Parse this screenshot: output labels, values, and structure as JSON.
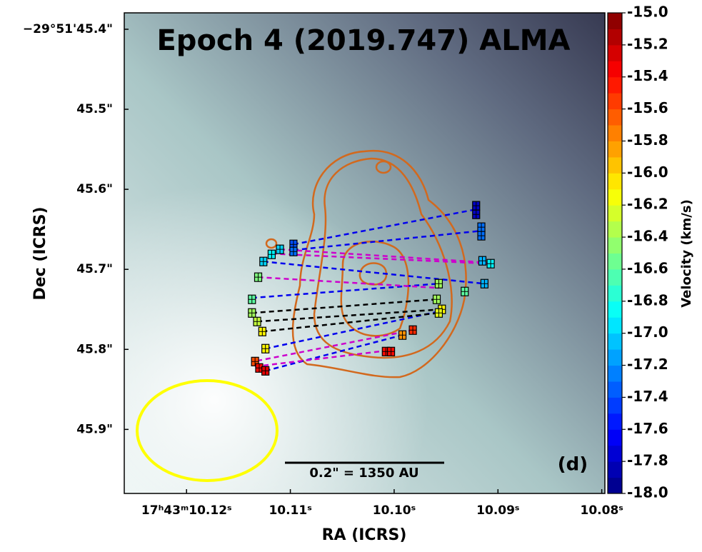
{
  "chart_data": {
    "type": "scatter",
    "title": "Epoch 4 (2019.747) ALMA",
    "x_label": "RA (ICRS)",
    "y_label": "Dec (ICRS)",
    "colorbar_label": "Velocity (km/s)",
    "colormap": "jet",
    "scale_bar_label": "0.2\" = 1350 AU",
    "panel_label": "(d)",
    "xlim": [
      10.126,
      10.0797
    ],
    "ylim": [
      45.98,
      45.3795
    ],
    "xticks": [
      {
        "value": 10.12,
        "label": "17ʰ43ᵐ10.12ˢ"
      },
      {
        "value": 10.11,
        "label": "10.11ˢ"
      },
      {
        "value": 10.1,
        "label": "10.10ˢ"
      },
      {
        "value": 10.09,
        "label": "10.09ˢ"
      },
      {
        "value": 10.08,
        "label": "10.08ˢ"
      }
    ],
    "yticks": [
      {
        "value": 45.4,
        "label": "−29°51'45.4\""
      },
      {
        "value": 45.5,
        "label": "45.5\""
      },
      {
        "value": 45.6,
        "label": "45.6\""
      },
      {
        "value": 45.7,
        "label": "45.7\""
      },
      {
        "value": 45.8,
        "label": "45.8\""
      },
      {
        "value": 45.9,
        "label": "45.9\""
      }
    ],
    "clim": [
      -18,
      -15
    ],
    "cticks": [
      {
        "value": -15,
        "label": "-15.0"
      },
      -15.2,
      -15.4,
      -15.6,
      -15.8,
      {
        "value": -16,
        "label": "-16.0"
      },
      -16.2,
      -16.4,
      -16.6,
      -16.8,
      {
        "value": -17,
        "label": "-17.0"
      },
      -17.2,
      -17.4,
      -17.6,
      -17.8,
      {
        "value": -18,
        "label": "-18.0"
      }
    ],
    "x": [
      10.0921,
      10.0921,
      10.0916,
      10.0916,
      10.1097,
      10.1097,
      10.111,
      10.1118,
      10.1126,
      10.0915,
      10.0907,
      10.1131,
      10.0913,
      10.0957,
      10.0932,
      10.1137,
      10.0959,
      10.1137,
      10.0954,
      10.1132,
      10.0957,
      10.1127,
      10.0982,
      10.0992,
      10.1124,
      10.1008,
      10.1003,
      10.1134,
      10.113,
      10.1124
    ],
    "y": [
      45.6205,
      45.6313,
      45.6473,
      45.658,
      45.6688,
      45.6777,
      45.675,
      45.6813,
      45.6902,
      45.6893,
      45.6929,
      45.7098,
      45.7179,
      45.7179,
      45.7277,
      45.7375,
      45.7375,
      45.7545,
      45.75,
      45.7652,
      45.7545,
      45.7777,
      45.7759,
      45.7821,
      45.7991,
      45.8027,
      45.8027,
      45.8152,
      45.8232,
      45.8268
    ],
    "values": [
      -17.8,
      -17.8,
      -17.3,
      -17.3,
      -17.4,
      -17.3,
      -17.0,
      -16.9,
      -17.0,
      -17.1,
      -16.9,
      -16.5,
      -17.1,
      -16.4,
      -16.6,
      -16.6,
      -16.4,
      -16.4,
      -16.1,
      -16.3,
      -16.2,
      -16.1,
      -15.5,
      -15.8,
      -16.1,
      -15.4,
      -15.4,
      -15.6,
      -15.4,
      -15.3
    ],
    "segments": [
      {
        "color": "#0000ee",
        "x": [
          10.1097,
          10.0921
        ],
        "y": [
          45.6688,
          45.625
        ]
      },
      {
        "color": "#0000ee",
        "x": [
          10.1097,
          10.0916
        ],
        "y": [
          45.6759,
          45.6518
        ]
      },
      {
        "color": "#0000ee",
        "x": [
          10.1126,
          10.0913
        ],
        "y": [
          45.6902,
          45.7179
        ]
      },
      {
        "color": "#0000ee",
        "x": [
          10.1137,
          10.0957
        ],
        "y": [
          45.7357,
          45.7179
        ]
      },
      {
        "color": "#0000ee",
        "x": [
          10.1124,
          10.0957
        ],
        "y": [
          45.7991,
          45.7527
        ]
      },
      {
        "color": "#0000ee",
        "x": [
          10.1124,
          10.0992
        ],
        "y": [
          45.8268,
          45.7821
        ]
      },
      {
        "color": "#cc00cc",
        "x": [
          10.111,
          10.0915
        ],
        "y": [
          45.675,
          45.6911
        ]
      },
      {
        "color": "#cc00cc",
        "x": [
          10.1118,
          10.0907
        ],
        "y": [
          45.6804,
          45.6929
        ]
      },
      {
        "color": "#cc00cc",
        "x": [
          10.1131,
          10.0957
        ],
        "y": [
          45.7098,
          45.7232
        ]
      },
      {
        "color": "#cc00cc",
        "x": [
          10.1132,
          10.0982
        ],
        "y": [
          45.8143,
          45.7759
        ]
      },
      {
        "color": "#cc00cc",
        "x": [
          10.1134,
          10.1003
        ],
        "y": [
          45.8214,
          45.8009
        ]
      },
      {
        "color": "#000000",
        "x": [
          10.1137,
          10.0959
        ],
        "y": [
          45.7545,
          45.7375
        ]
      },
      {
        "color": "#000000",
        "x": [
          10.1132,
          10.0954
        ],
        "y": [
          45.7652,
          45.75
        ]
      },
      {
        "color": "#000000",
        "x": [
          10.1127,
          10.0957
        ],
        "y": [
          45.7777,
          45.7545
        ]
      }
    ]
  }
}
